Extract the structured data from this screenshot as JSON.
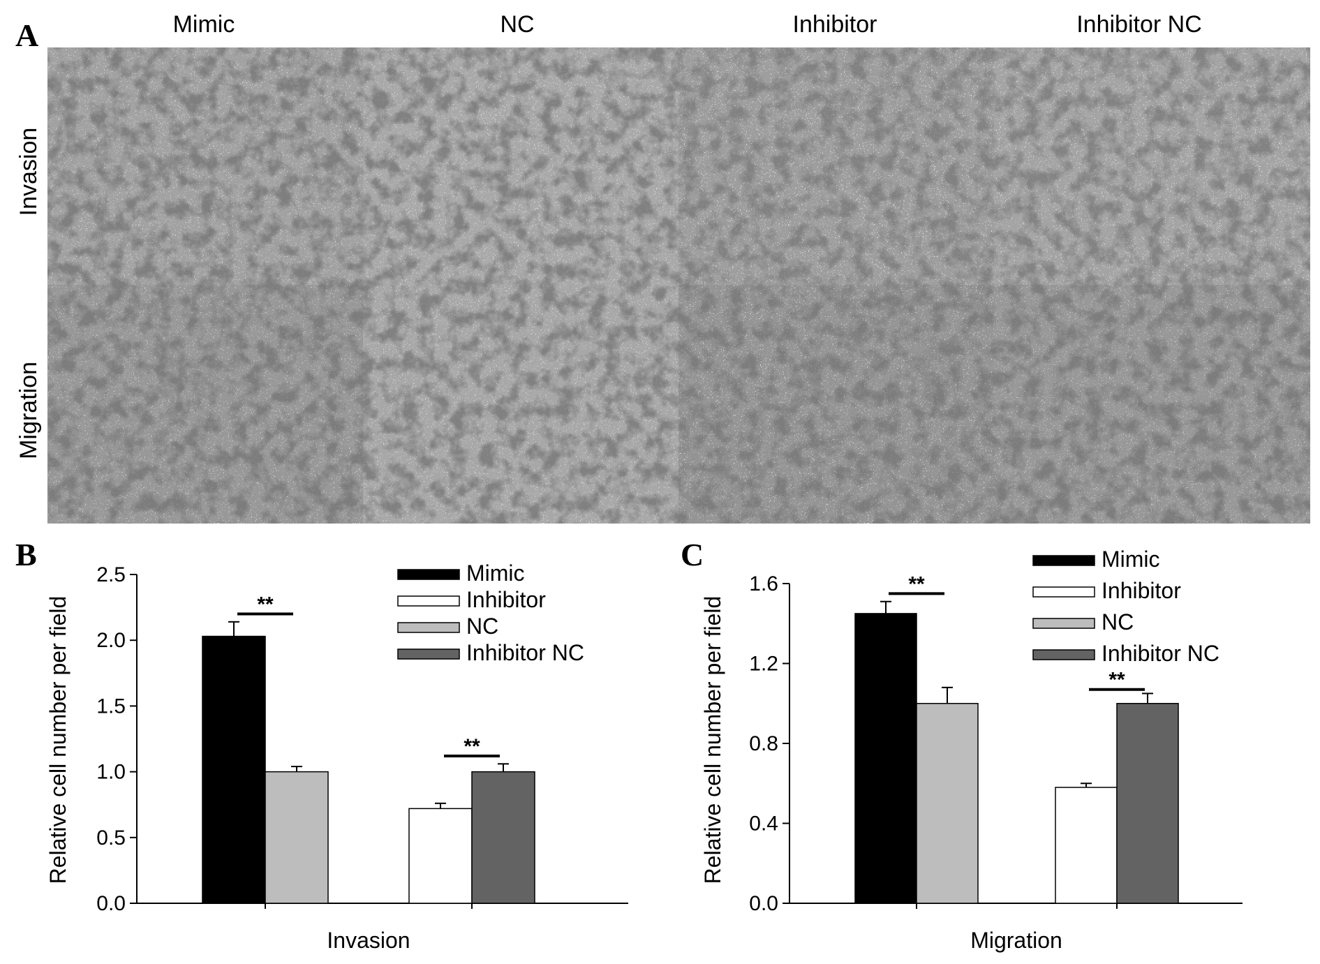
{
  "panel_a": {
    "letter": "A",
    "columns": [
      "Mimic",
      "NC",
      "Inhibitor",
      "Inhibitor NC"
    ],
    "rows": [
      "Invasion",
      "Migration"
    ]
  },
  "chart_data": [
    {
      "type": "bar",
      "panel": "B",
      "title": "",
      "xlabel": "Invasion",
      "ylabel": "Relative cell number per field",
      "ylim": [
        0,
        2.5
      ],
      "yticks": [
        "0.0",
        "0.5",
        "1.0",
        "1.5",
        "2.0",
        "2.5"
      ],
      "grid": false,
      "legend_position": "top-right",
      "legend": [
        {
          "name": "Mimic",
          "color": "#000000"
        },
        {
          "name": "Inhibitor",
          "color": "#ffffff"
        },
        {
          "name": "NC",
          "color": "#bdbdbd"
        },
        {
          "name": "Inhibitor NC",
          "color": "#636363"
        }
      ],
      "bars": [
        {
          "group": 0,
          "series": "Mimic",
          "value": 2.03,
          "error": 0.11,
          "color": "#000000"
        },
        {
          "group": 0,
          "series": "NC",
          "value": 1.0,
          "error": 0.04,
          "color": "#bdbdbd"
        },
        {
          "group": 1,
          "series": "Inhibitor",
          "value": 0.72,
          "error": 0.04,
          "color": "#ffffff"
        },
        {
          "group": 1,
          "series": "Inhibitor NC",
          "value": 1.0,
          "error": 0.06,
          "color": "#636363"
        }
      ],
      "significance": [
        {
          "group": 0,
          "label": "**",
          "y": 2.2
        },
        {
          "group": 1,
          "label": "**",
          "y": 1.12
        }
      ]
    },
    {
      "type": "bar",
      "panel": "C",
      "title": "",
      "xlabel": "Migration",
      "ylabel": "Relative cell number per field",
      "ylim": [
        0,
        1.6
      ],
      "yticks": [
        "0.0",
        "0.4",
        "0.8",
        "1.2",
        "1.6"
      ],
      "grid": false,
      "legend_position": "top-right",
      "legend": [
        {
          "name": "Mimic",
          "color": "#000000"
        },
        {
          "name": "Inhibitor",
          "color": "#ffffff"
        },
        {
          "name": "NC",
          "color": "#bdbdbd"
        },
        {
          "name": "Inhibitor NC",
          "color": "#636363"
        }
      ],
      "bars": [
        {
          "group": 0,
          "series": "Mimic",
          "value": 1.45,
          "error": 0.06,
          "color": "#000000"
        },
        {
          "group": 0,
          "series": "NC",
          "value": 1.0,
          "error": 0.08,
          "color": "#bdbdbd"
        },
        {
          "group": 1,
          "series": "Inhibitor",
          "value": 0.58,
          "error": 0.02,
          "color": "#ffffff"
        },
        {
          "group": 1,
          "series": "Inhibitor NC",
          "value": 1.0,
          "error": 0.05,
          "color": "#636363"
        }
      ],
      "significance": [
        {
          "group": 0,
          "label": "**",
          "y": 1.55
        },
        {
          "group": 1,
          "label": "**",
          "y": 1.07
        }
      ]
    }
  ]
}
